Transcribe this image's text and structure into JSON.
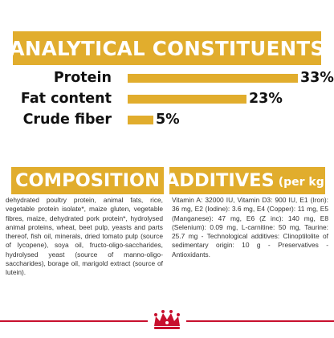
{
  "analytics": {
    "title": "ANALYTICAL CONSTITUENTS",
    "rows": [
      {
        "label": "Protein",
        "value": "33%",
        "percent": 33
      },
      {
        "label": "Fat content",
        "value": "23%",
        "percent": 23
      },
      {
        "label": "Crude fiber",
        "value": "5%",
        "percent": 5
      }
    ],
    "bar_color": "#e1ad2d"
  },
  "composition": {
    "title": "COMPOSITION",
    "text": "dehydrated poultry protein, animal fats, rice, vegetable protein isolate*, maize gluten, vegetable fibres, maize, dehydrated pork protein*, hydrolysed animal proteins, wheat, beet pulp, yeasts and parts thereof, fish oil, minerals, dried tomato pulp (source of lycopene), soya oil, fructo-oligo-saccharides, hydrolysed yeast (source of manno-oligo-saccharides), borage oil, marigold extract (source of lutein)."
  },
  "additives": {
    "title": "ADDITIVES",
    "subtitle": "(per kg)",
    "text": "Vitamin A: 32000 IU, Vitamin D3: 900 IU, E1 (Iron): 36 mg, E2 (Iodine): 3.6 mg, E4 (Copper): 11 mg, E5 (Manganese): 47 mg, E6 (Z inc): 140 mg, E8 (Selenium): 0.09 mg, L-carnitine: 50 mg, Taurine: 25.7 mg - Technological additives: Clinoptilolite of sedimentary origin: 10 g - Preservatives - Antioxidants."
  },
  "brand": {
    "logo_icon": "royal-canin-crown-logo-icon",
    "accent": "#c8102e"
  }
}
